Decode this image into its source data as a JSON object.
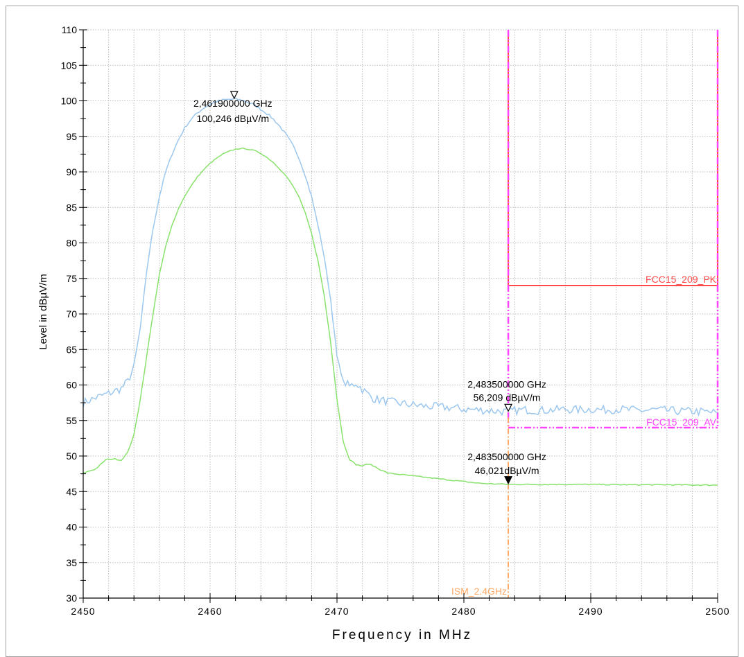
{
  "chart_data": {
    "type": "line",
    "xlabel": "Frequency in MHz",
    "ylabel": "Level in dBµV/m",
    "xlim": [
      2450,
      2500
    ],
    "ylim": [
      30,
      110
    ],
    "x_ticks": [
      "2450",
      "2460",
      "2470",
      "2480",
      "2490",
      "2500"
    ],
    "y_ticks": [
      "30",
      "35",
      "40",
      "45",
      "50",
      "55",
      "60",
      "65",
      "70",
      "75",
      "80",
      "85",
      "90",
      "95",
      "100",
      "105",
      "110"
    ],
    "grid": true,
    "series": [
      {
        "color": "#9cc7ee",
        "points": [
          [
            2450,
            57.5
          ],
          [
            2451,
            58.2
          ],
          [
            2452,
            58.8
          ],
          [
            2453,
            59.5
          ],
          [
            2453.5,
            60.5
          ],
          [
            2454,
            62.5
          ],
          [
            2454.5,
            68
          ],
          [
            2455,
            76
          ],
          [
            2455.5,
            82
          ],
          [
            2456,
            86.5
          ],
          [
            2456.5,
            90
          ],
          [
            2457,
            92.5
          ],
          [
            2457.5,
            94.5
          ],
          [
            2458,
            96.2
          ],
          [
            2458.5,
            97.4
          ],
          [
            2459,
            98.3
          ],
          [
            2459.5,
            99.0
          ],
          [
            2460,
            99.5
          ],
          [
            2460.5,
            99.9
          ],
          [
            2461,
            100.1
          ],
          [
            2461.5,
            100.2
          ],
          [
            2461.9,
            100.246
          ],
          [
            2462.5,
            100.1
          ],
          [
            2463,
            99.8
          ],
          [
            2463.5,
            99.4
          ],
          [
            2464,
            98.8
          ],
          [
            2464.5,
            98.2
          ],
          [
            2465,
            97.4
          ],
          [
            2465.5,
            96.4
          ],
          [
            2466,
            95.2
          ],
          [
            2466.5,
            93.8
          ],
          [
            2467,
            92.0
          ],
          [
            2467.5,
            89.5
          ],
          [
            2468,
            86.5
          ],
          [
            2468.5,
            82.5
          ],
          [
            2469,
            78
          ],
          [
            2469.5,
            72
          ],
          [
            2470,
            64
          ],
          [
            2470.5,
            60.5
          ],
          [
            2471,
            59.8
          ],
          [
            2471.5,
            60.3
          ],
          [
            2472,
            59.4
          ],
          [
            2472.5,
            58.6
          ],
          [
            2473,
            58.0
          ],
          [
            2474,
            57.7
          ],
          [
            2475,
            57.4
          ],
          [
            2476,
            57.2
          ],
          [
            2477,
            57.0
          ],
          [
            2478,
            56.9
          ],
          [
            2479,
            56.8
          ],
          [
            2480,
            56.6
          ],
          [
            2481,
            56.5
          ],
          [
            2482,
            56.4
          ],
          [
            2483,
            56.3
          ],
          [
            2483.5,
            56.209
          ],
          [
            2484,
            56.4
          ],
          [
            2485,
            56.5
          ],
          [
            2486,
            56.4
          ],
          [
            2487,
            56.5
          ],
          [
            2488,
            56.6
          ],
          [
            2489,
            56.5
          ],
          [
            2490,
            56.6
          ],
          [
            2491,
            56.5
          ],
          [
            2492,
            56.6
          ],
          [
            2493,
            56.5
          ],
          [
            2494,
            56.4
          ],
          [
            2495,
            56.5
          ],
          [
            2496,
            56.4
          ],
          [
            2497,
            56.3
          ],
          [
            2498,
            56.3
          ],
          [
            2499,
            56.2
          ],
          [
            2500,
            56.1
          ]
        ]
      },
      {
        "color": "#88e26b",
        "points": [
          [
            2450,
            47.6
          ],
          [
            2451,
            48.2
          ],
          [
            2451.8,
            49.5
          ],
          [
            2452.5,
            49.6
          ],
          [
            2453,
            49.4
          ],
          [
            2453.5,
            50.5
          ],
          [
            2454,
            53
          ],
          [
            2454.5,
            58
          ],
          [
            2455,
            64
          ],
          [
            2455.5,
            70
          ],
          [
            2456,
            75.5
          ],
          [
            2456.5,
            79.5
          ],
          [
            2457,
            82.5
          ],
          [
            2457.5,
            84.8
          ],
          [
            2458,
            86.6
          ],
          [
            2458.5,
            88.0
          ],
          [
            2459,
            89.3
          ],
          [
            2459.5,
            90.3
          ],
          [
            2460,
            91.2
          ],
          [
            2460.5,
            91.9
          ],
          [
            2461,
            92.5
          ],
          [
            2461.5,
            92.9
          ],
          [
            2462,
            93.2
          ],
          [
            2462.5,
            93.3
          ],
          [
            2463,
            93.2
          ],
          [
            2463.5,
            93.0
          ],
          [
            2464,
            92.6
          ],
          [
            2464.5,
            92.0
          ],
          [
            2465,
            91.3
          ],
          [
            2465.5,
            90.4
          ],
          [
            2466,
            89.4
          ],
          [
            2466.5,
            88.1
          ],
          [
            2467,
            86.5
          ],
          [
            2467.5,
            84.2
          ],
          [
            2468,
            81.3
          ],
          [
            2468.5,
            77.5
          ],
          [
            2469,
            72.5
          ],
          [
            2469.5,
            66
          ],
          [
            2470,
            58
          ],
          [
            2470.5,
            52
          ],
          [
            2471,
            49.5
          ],
          [
            2471.5,
            48.8
          ],
          [
            2472,
            48.6
          ],
          [
            2472.5,
            48.9
          ],
          [
            2473,
            48.5
          ],
          [
            2473.5,
            48.0
          ],
          [
            2474,
            47.6
          ],
          [
            2475,
            47.4
          ],
          [
            2476,
            47.2
          ],
          [
            2477,
            47.0
          ],
          [
            2478,
            46.8
          ],
          [
            2479,
            46.6
          ],
          [
            2480,
            46.4
          ],
          [
            2481,
            46.2
          ],
          [
            2482,
            46.1
          ],
          [
            2483.5,
            46.021
          ],
          [
            2485,
            46.0
          ],
          [
            2487,
            46.0
          ],
          [
            2490,
            46.0
          ],
          [
            2493,
            45.95
          ],
          [
            2496,
            45.95
          ],
          [
            2500,
            45.9
          ]
        ]
      }
    ],
    "limits": [
      {
        "label": "FCC15_209_PK",
        "color": "#ff4a4a",
        "from_x": 2483.5,
        "to_x": 2500,
        "level": 74
      },
      {
        "label": "FCC15_209_AV",
        "color": "#ff44ff",
        "from_x": 2483.5,
        "to_x": 2500,
        "level": 54
      }
    ],
    "band_edge": {
      "label": "ISM_2.4GHz",
      "color": "#ffaa66",
      "x": 2483.5
    },
    "markers": [
      {
        "x": 2461.9,
        "y": 100.246,
        "freq": "2,461900000 GHz",
        "level": "100,246 dBµV/m",
        "filled": false
      },
      {
        "x": 2483.5,
        "y": 56.209,
        "freq": "2,483500000 GHz",
        "level": "56,209 dBµV/m",
        "filled": false
      },
      {
        "x": 2483.5,
        "y": 46.021,
        "freq": "2,483500000 GHz",
        "level": "46,021dBµV/m",
        "filled": true
      }
    ]
  }
}
